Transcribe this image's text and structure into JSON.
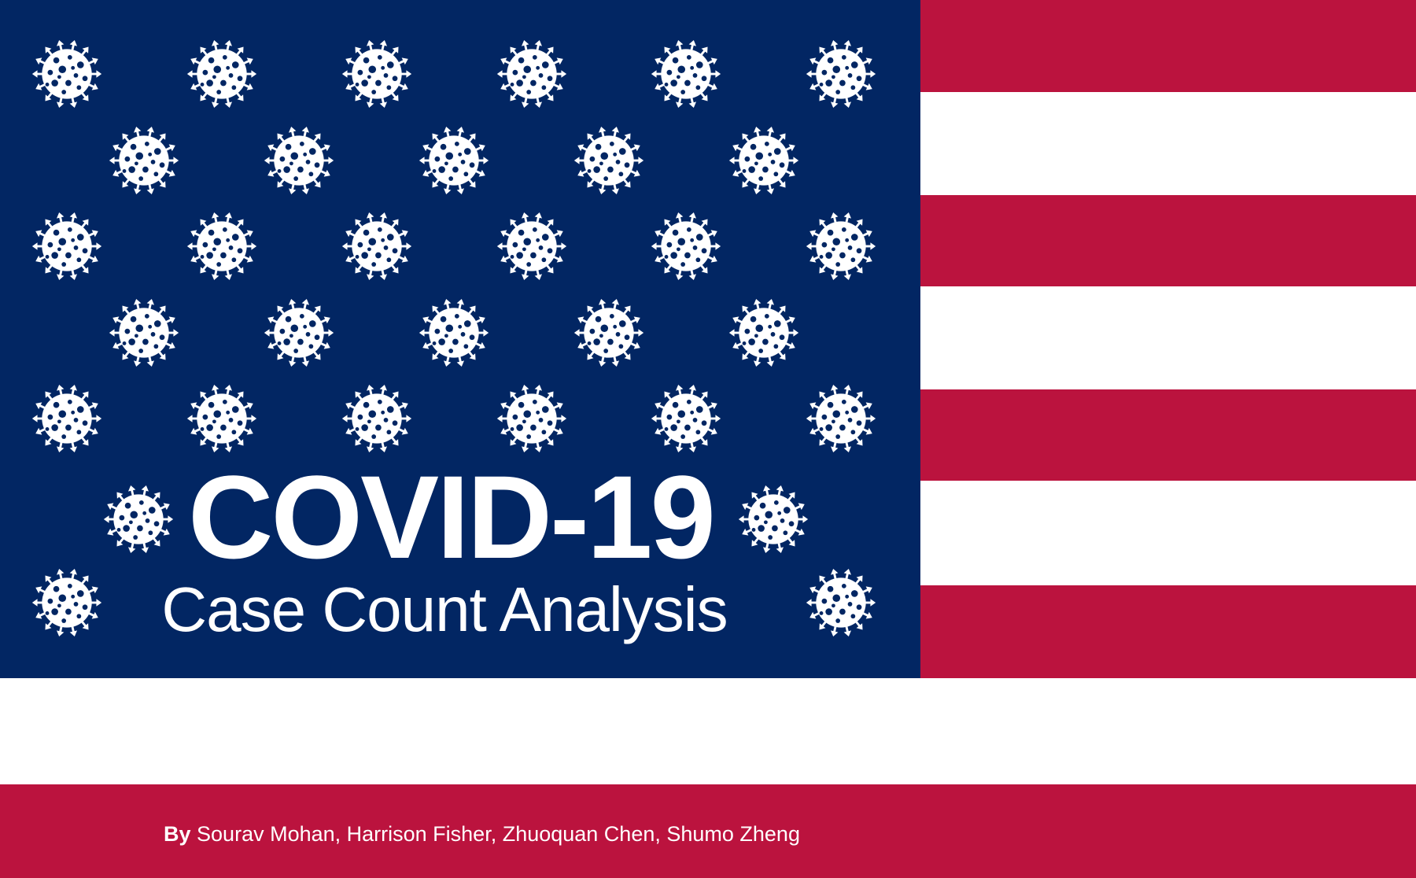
{
  "title": "COVID-19",
  "subtitle": "Case Count Analysis",
  "byline": {
    "prefix": "By",
    "authors": "Sourav Mohan, Harrison Fisher, Zhuoquan Chen, Shumo Zheng"
  },
  "colors": {
    "navy": "#022663",
    "red": "#bb133e",
    "white": "#ffffff"
  },
  "icons": {
    "virus": "coronavirus-icon"
  }
}
